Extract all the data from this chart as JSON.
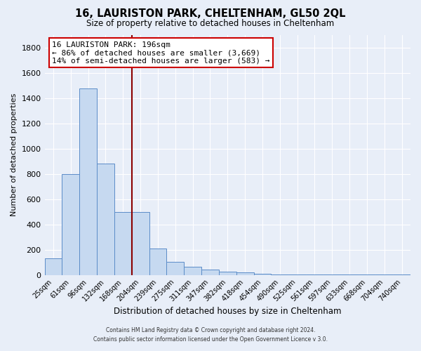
{
  "title": "16, LAURISTON PARK, CHELTENHAM, GL50 2QL",
  "subtitle": "Size of property relative to detached houses in Cheltenham",
  "xlabel": "Distribution of detached houses by size in Cheltenham",
  "ylabel": "Number of detached properties",
  "footer_line1": "Contains HM Land Registry data © Crown copyright and database right 2024.",
  "footer_line2": "Contains public sector information licensed under the Open Government Licence v 3.0.",
  "bar_labels": [
    "25sqm",
    "61sqm",
    "96sqm",
    "132sqm",
    "168sqm",
    "204sqm",
    "239sqm",
    "275sqm",
    "311sqm",
    "347sqm",
    "382sqm",
    "418sqm",
    "454sqm",
    "490sqm",
    "525sqm",
    "561sqm",
    "597sqm",
    "633sqm",
    "668sqm",
    "704sqm",
    "740sqm"
  ],
  "bar_values": [
    130,
    800,
    1480,
    880,
    500,
    500,
    210,
    105,
    65,
    40,
    25,
    20,
    10,
    5,
    3,
    2,
    1,
    1,
    1,
    1,
    1
  ],
  "bar_color": "#c6d9f0",
  "bar_edge_color": "#5b8cc8",
  "bg_color": "#e8eef8",
  "grid_color": "#ffffff",
  "vline_index": 5,
  "vline_color": "#8b0000",
  "annotation_title": "16 LAURISTON PARK: 196sqm",
  "annotation_line1": "← 86% of detached houses are smaller (3,669)",
  "annotation_line2": "14% of semi-detached houses are larger (583) →",
  "annotation_box_color": "#ffffff",
  "annotation_box_edge": "#cc0000",
  "ylim": [
    0,
    1900
  ],
  "yticks": [
    0,
    200,
    400,
    600,
    800,
    1000,
    1200,
    1400,
    1600,
    1800
  ]
}
